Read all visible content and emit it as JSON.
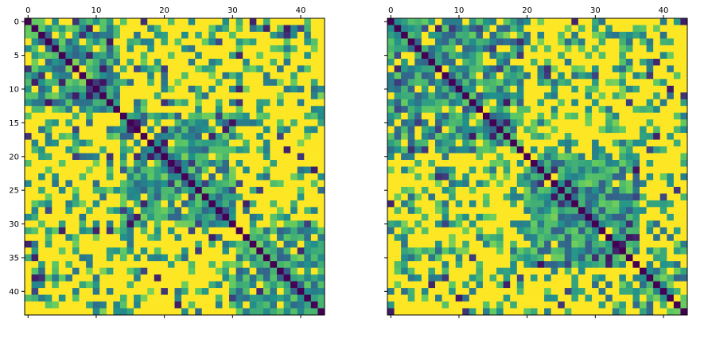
{
  "chart_data": [
    {
      "type": "heatmap",
      "title": "",
      "xlabel": "",
      "ylabel": "",
      "rows": 44,
      "cols": 44,
      "xlim": [
        -0.5,
        43.5
      ],
      "ylim": [
        43.5,
        -0.5
      ],
      "x_axis_position": "top",
      "x_ticks": [
        0,
        10,
        20,
        30,
        40
      ],
      "y_ticks": [
        0,
        5,
        10,
        15,
        20,
        25,
        30,
        35,
        40
      ],
      "colormap": "viridis",
      "value_range": [
        0,
        1
      ],
      "grid": false,
      "blocks": [
        [
          0,
          14
        ],
        [
          14,
          31
        ],
        [
          31,
          44
        ]
      ],
      "diagonal_value": 0.0,
      "seed": 7
    },
    {
      "type": "heatmap",
      "title": "",
      "xlabel": "",
      "ylabel": "",
      "rows": 44,
      "cols": 44,
      "xlim": [
        -0.5,
        43.5
      ],
      "ylim": [
        43.5,
        -0.5
      ],
      "x_axis_position": "top",
      "x_ticks": [
        0,
        10,
        20,
        30,
        40
      ],
      "y_ticks": [
        0,
        5,
        10,
        15,
        20,
        25,
        30,
        35,
        40
      ],
      "y_tick_labels_shown": false,
      "colormap": "viridis",
      "value_range": [
        0,
        1
      ],
      "grid": false,
      "blocks": [
        [
          0,
          20
        ],
        [
          20,
          37
        ],
        [
          37,
          44
        ]
      ],
      "diagonal_value": 0.0,
      "seed": 23
    }
  ]
}
